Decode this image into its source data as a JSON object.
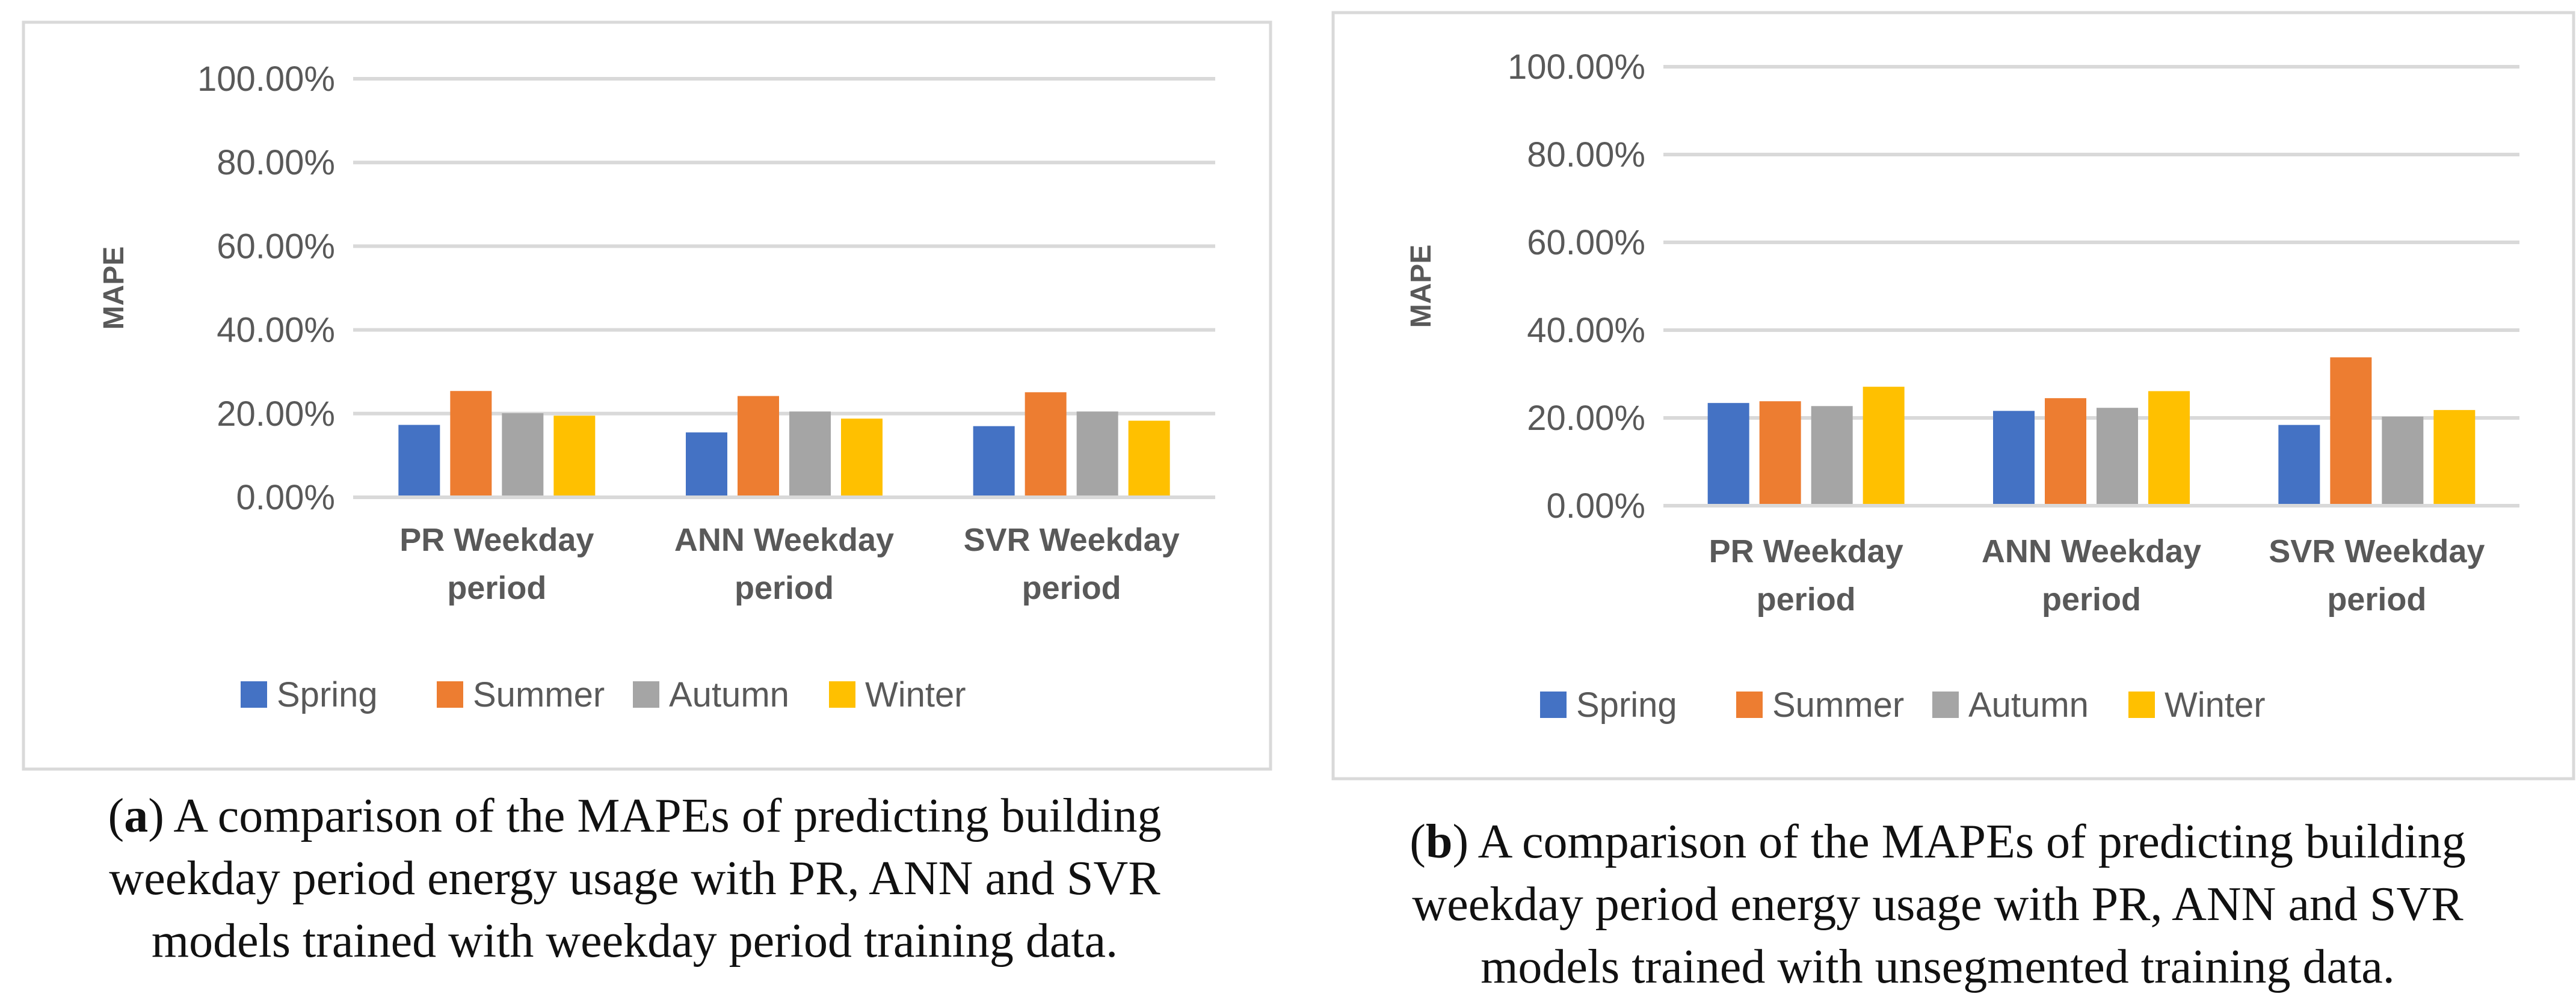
{
  "chart_data": [
    {
      "type": "bar",
      "ylabel": "MAPE",
      "xlabel": "",
      "categories": [
        [
          "PR Weekday",
          "period"
        ],
        [
          "ANN Weekday",
          "period"
        ],
        [
          "SVR Weekday",
          "period"
        ]
      ],
      "yticks": [
        "0.00%",
        "20.00%",
        "40.00%",
        "60.00%",
        "80.00%",
        "100.00%"
      ],
      "ylim": [
        0,
        100
      ],
      "grid": true,
      "legend_position": "bottom",
      "series": [
        {
          "name": "Spring",
          "color": "#4472C4",
          "values": [
            17.3,
            15.5,
            17.0
          ]
        },
        {
          "name": "Summer",
          "color": "#ED7D31",
          "values": [
            25.4,
            24.2,
            25.1
          ]
        },
        {
          "name": "Autumn",
          "color": "#A5A5A5",
          "values": [
            20.1,
            20.5,
            20.5
          ]
        },
        {
          "name": "Winter",
          "color": "#FFC000",
          "values": [
            19.5,
            18.8,
            18.3
          ]
        }
      ]
    },
    {
      "type": "bar",
      "ylabel": "MAPE",
      "xlabel": "",
      "categories": [
        [
          "PR Weekday",
          "period"
        ],
        [
          "ANN Weekday",
          "period"
        ],
        [
          "SVR Weekday",
          "period"
        ]
      ],
      "yticks": [
        "0.00%",
        "20.00%",
        "40.00%",
        "60.00%",
        "80.00%",
        "100.00%"
      ],
      "ylim": [
        0,
        100
      ],
      "grid": true,
      "legend_position": "bottom",
      "series": [
        {
          "name": "Spring",
          "color": "#4472C4",
          "values": [
            23.4,
            21.6,
            18.4
          ]
        },
        {
          "name": "Summer",
          "color": "#ED7D31",
          "values": [
            23.8,
            24.5,
            33.8
          ]
        },
        {
          "name": "Autumn",
          "color": "#A5A5A5",
          "values": [
            22.7,
            22.3,
            20.3
          ]
        },
        {
          "name": "Winter",
          "color": "#FFC000",
          "values": [
            27.1,
            26.1,
            21.8
          ]
        }
      ]
    }
  ],
  "captions": [
    {
      "label": "a",
      "lines": [
        "A comparison of the MAPEs of predicting building",
        "weekday period energy usage with PR, ANN and SVR",
        "models trained with weekday period training data."
      ]
    },
    {
      "label": "b",
      "lines": [
        "A comparison of the MAPEs of predicting building",
        "weekday period energy usage with PR, ANN and SVR",
        "models trained with unsegmented training data."
      ]
    }
  ]
}
